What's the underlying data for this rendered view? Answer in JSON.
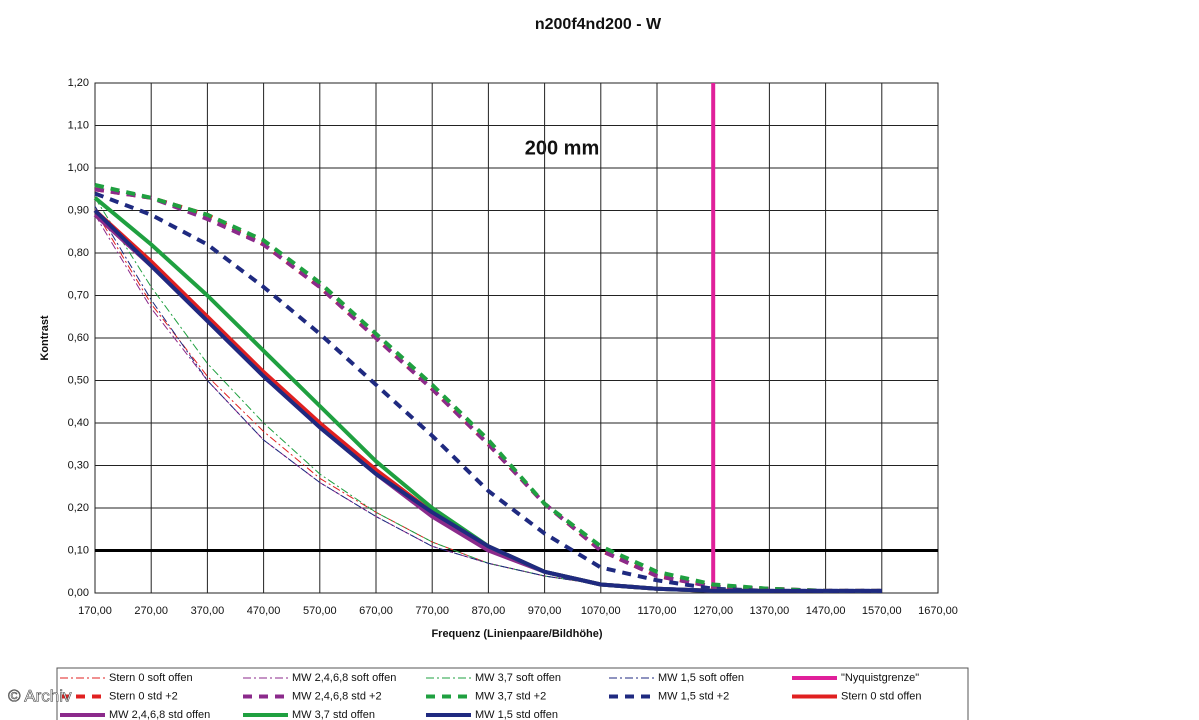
{
  "chart_data": {
    "type": "line",
    "title": "n200f4nd200 - W",
    "annotation": "200 mm",
    "watermark": "© Archiv",
    "x_label": "Frequenz (Linienpaare/Bildhöhe)",
    "y_label": "Kontrast",
    "x": [
      170,
      270,
      370,
      470,
      570,
      670,
      770,
      870,
      970,
      1070,
      1170,
      1270,
      1370,
      1470,
      1570
    ],
    "xlim": [
      170,
      1670
    ],
    "ylim": [
      0,
      1.2
    ],
    "xticks": [
      {
        "value": 170,
        "label": "170,00"
      },
      {
        "value": 270,
        "label": "270,00"
      },
      {
        "value": 370,
        "label": "370,00"
      },
      {
        "value": 470,
        "label": "470,00"
      },
      {
        "value": 570,
        "label": "570,00"
      },
      {
        "value": 670,
        "label": "670,00"
      },
      {
        "value": 770,
        "label": "770,00"
      },
      {
        "value": 870,
        "label": "870,00"
      },
      {
        "value": 970,
        "label": "970,00"
      },
      {
        "value": 1070,
        "label": "1070,00"
      },
      {
        "value": 1170,
        "label": "1170,00"
      },
      {
        "value": 1270,
        "label": "1270,00"
      },
      {
        "value": 1370,
        "label": "1370,00"
      },
      {
        "value": 1470,
        "label": "1470,00"
      },
      {
        "value": 1570,
        "label": "1570,00"
      },
      {
        "value": 1670,
        "label": "1670,00"
      }
    ],
    "yticks": [
      {
        "value": 0,
        "label": "0,00"
      },
      {
        "value": 0.1,
        "label": "0,10"
      },
      {
        "value": 0.2,
        "label": "0,20"
      },
      {
        "value": 0.3,
        "label": "0,30"
      },
      {
        "value": 0.4,
        "label": "0,40"
      },
      {
        "value": 0.5,
        "label": "0,50"
      },
      {
        "value": 0.6,
        "label": "0,60"
      },
      {
        "value": 0.7,
        "label": "0,70"
      },
      {
        "value": 0.8,
        "label": "0,80"
      },
      {
        "value": 0.9,
        "label": "0,90"
      },
      {
        "value": 1.0,
        "label": "1,00"
      },
      {
        "value": 1.1,
        "label": "1,10"
      },
      {
        "value": 1.2,
        "label": "1,20"
      }
    ],
    "grid": true,
    "hline": {
      "value": 0.1,
      "color": "#000000"
    },
    "series": [
      {
        "name": "Stern 0 soft offen",
        "color": "#e02020",
        "dash": "dashdot",
        "width": 1,
        "values": [
          0.9,
          0.68,
          0.51,
          0.38,
          0.27,
          0.19,
          0.12,
          0.07,
          0.04,
          0.02,
          null,
          null,
          null,
          null,
          null
        ]
      },
      {
        "name": "MW 2,4,6,8 soft offen",
        "color": "#8b2a8b",
        "dash": "dashdot",
        "width": 1,
        "values": [
          0.89,
          0.67,
          0.5,
          0.36,
          0.26,
          0.18,
          0.11,
          0.07,
          0.04,
          0.02,
          null,
          null,
          null,
          null,
          null
        ]
      },
      {
        "name": "MW 3,7 soft offen",
        "color": "#1fa040",
        "dash": "dashdot",
        "width": 1,
        "values": [
          0.93,
          0.72,
          0.54,
          0.4,
          0.28,
          0.19,
          0.12,
          0.07,
          0.04,
          0.02,
          null,
          null,
          null,
          null,
          null
        ]
      },
      {
        "name": "MW 1,5 soft offen",
        "color": "#1f2a80",
        "dash": "dashdot",
        "width": 1,
        "values": [
          0.91,
          0.69,
          0.5,
          0.36,
          0.26,
          0.18,
          0.11,
          0.07,
          0.04,
          0.02,
          null,
          null,
          null,
          null,
          null
        ]
      },
      {
        "name": "\"Nyquistgrenze\"",
        "color": "#e0209a",
        "dash": "solid",
        "width": 4,
        "x": [
          1270,
          1270
        ],
        "values": [
          0,
          1.2
        ]
      },
      {
        "name": "Stern 0 std +2",
        "color": "#e02020",
        "dash": "dashed",
        "width": 4,
        "values": [
          0.95,
          0.93,
          0.89,
          0.82,
          0.72,
          0.6,
          0.48,
          0.35,
          0.21,
          0.1,
          0.04,
          0.015,
          0.01,
          0.005,
          0.005
        ]
      },
      {
        "name": "MW 2,4,6,8 std +2",
        "color": "#8b2a8b",
        "dash": "dashed",
        "width": 4,
        "values": [
          0.95,
          0.93,
          0.88,
          0.82,
          0.72,
          0.6,
          0.48,
          0.35,
          0.21,
          0.1,
          0.04,
          0.015,
          0.01,
          0.005,
          0.005
        ]
      },
      {
        "name": "MW 3,7 std +2",
        "color": "#1fa040",
        "dash": "dashed",
        "width": 4,
        "values": [
          0.96,
          0.93,
          0.89,
          0.83,
          0.73,
          0.61,
          0.49,
          0.36,
          0.21,
          0.11,
          0.05,
          0.02,
          0.01,
          0.005,
          0.005
        ]
      },
      {
        "name": "MW 1,5 std +2",
        "color": "#1f2a80",
        "dash": "dashed",
        "width": 4,
        "values": [
          0.94,
          0.89,
          0.82,
          0.72,
          0.61,
          0.49,
          0.37,
          0.24,
          0.14,
          0.06,
          0.03,
          0.01,
          0.005,
          0.005,
          0.005
        ]
      },
      {
        "name": "Stern 0 std offen",
        "color": "#e02020",
        "dash": "solid",
        "width": 4,
        "values": [
          0.9,
          0.78,
          0.65,
          0.52,
          0.4,
          0.29,
          0.19,
          0.11,
          0.05,
          0.02,
          0.01,
          0.005,
          0.005,
          null,
          null
        ]
      },
      {
        "name": "MW 2,4,6,8 std offen",
        "color": "#8b2a8b",
        "dash": "solid",
        "width": 4,
        "values": [
          0.89,
          0.77,
          0.64,
          0.51,
          0.39,
          0.28,
          0.18,
          0.1,
          0.05,
          0.02,
          0.01,
          0.005,
          0.005,
          null,
          null
        ]
      },
      {
        "name": "MW 3,7 std offen",
        "color": "#1fa040",
        "dash": "solid",
        "width": 4,
        "values": [
          0.93,
          0.82,
          0.7,
          0.57,
          0.44,
          0.31,
          0.2,
          0.11,
          0.05,
          0.02,
          0.01,
          0.005,
          0.005,
          null,
          null
        ]
      },
      {
        "name": "MW 1,5 std offen",
        "color": "#1f2a80",
        "dash": "solid",
        "width": 4,
        "values": [
          0.9,
          0.77,
          0.64,
          0.51,
          0.39,
          0.28,
          0.19,
          0.11,
          0.05,
          0.02,
          0.01,
          0.005,
          0.005,
          0.005,
          0.005
        ]
      }
    ]
  }
}
